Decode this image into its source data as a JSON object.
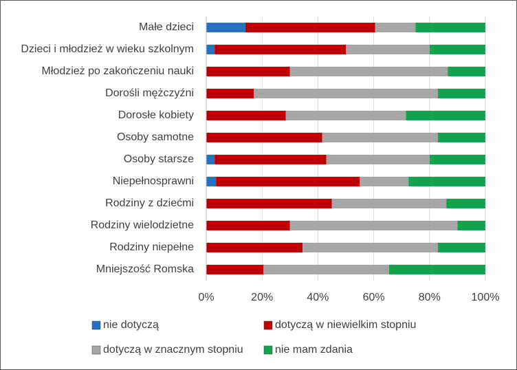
{
  "chart_data": {
    "type": "stacked-bar-horizontal",
    "categories": [
      "Małe dzieci",
      "Dzieci i młodzież w wieku szkolnym",
      "Młodzież po zakończeniu nauki",
      "Dorośli mężczyźni",
      "Dorosłe kobiety",
      "Osoby samotne",
      "Osoby starsze",
      "Niepełnosprawni",
      "Rodziny z dziećmi",
      "Rodziny wielodzietne",
      "Rodziny niepełne",
      "Mniejszość Romska"
    ],
    "series": [
      {
        "name": "nie dotyczą",
        "color": "#2770C0",
        "values": [
          14,
          3,
          0,
          0,
          0,
          0,
          3,
          3.5,
          0,
          0,
          0,
          0
        ]
      },
      {
        "name": "dotyczą w niewielkim stopniu",
        "color": "#C00000",
        "values": [
          46.5,
          47,
          30,
          17,
          28.5,
          41.5,
          40,
          51.5,
          45,
          30,
          34.5,
          20.5
        ]
      },
      {
        "name": "dotyczą w znacznym stopniu",
        "color": "#A6A6A6",
        "values": [
          14.5,
          30,
          56.5,
          66,
          43,
          41.5,
          37,
          17.5,
          41,
          60,
          48.5,
          45
        ]
      },
      {
        "name": "nie mam zdania",
        "color": "#14A44D",
        "values": [
          25,
          20,
          13.5,
          17,
          28.5,
          17,
          20,
          27.5,
          14,
          10,
          17,
          34.5
        ]
      }
    ],
    "xlim": [
      0,
      100
    ],
    "xticks": [
      {
        "value": 0,
        "label": "0%"
      },
      {
        "value": 20,
        "label": "20%"
      },
      {
        "value": 40,
        "label": "40%"
      },
      {
        "value": 60,
        "label": "60%"
      },
      {
        "value": 80,
        "label": "80%"
      },
      {
        "value": 100,
        "label": "100%"
      }
    ],
    "grid": true
  }
}
